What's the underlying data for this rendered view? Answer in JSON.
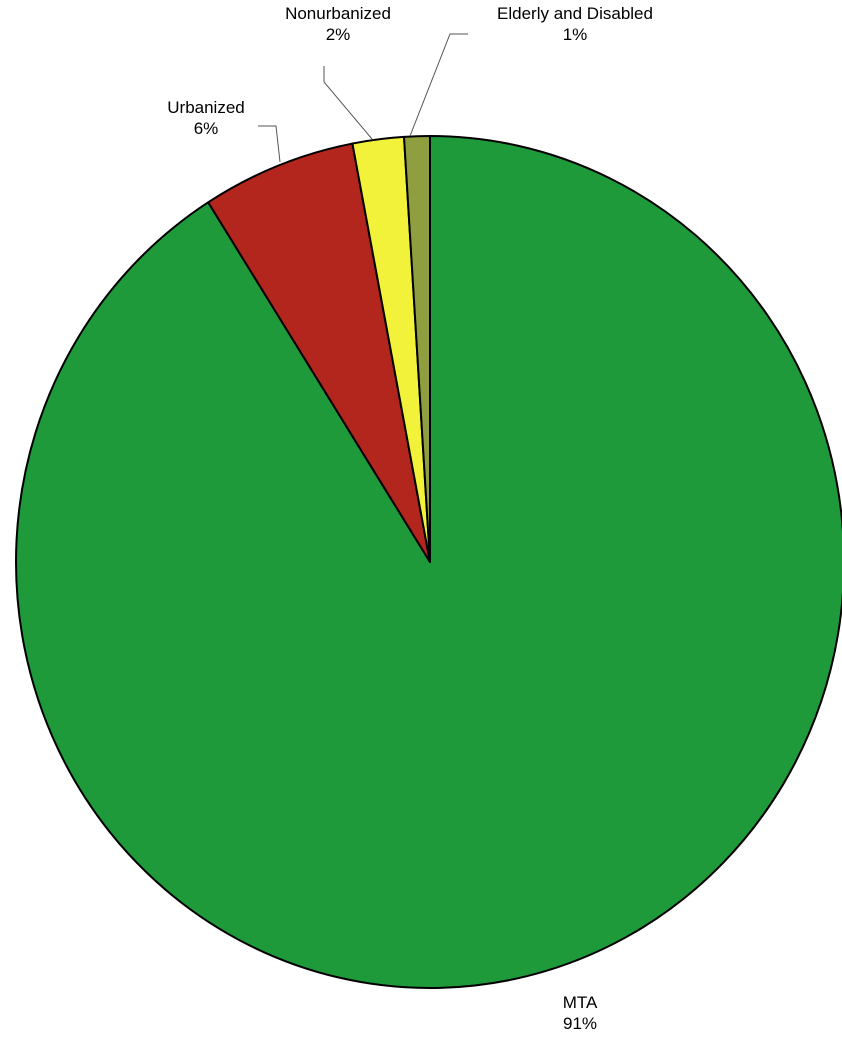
{
  "chart_data": {
    "type": "pie",
    "title": "",
    "start_angle_deg": 90,
    "direction": "clockwise",
    "legend": "none",
    "slices": [
      {
        "label": "MTA",
        "value": 91,
        "percent_label": "91%",
        "color": "#1f9a3a"
      },
      {
        "label": "Urbanized",
        "value": 6,
        "percent_label": "6%",
        "color": "#b3261e"
      },
      {
        "label": "Nonurbanized",
        "value": 2,
        "percent_label": "2%",
        "color": "#f2f23a"
      },
      {
        "label": "Elderly and Disabled",
        "value": 1,
        "percent_label": "1%",
        "color": "#8f9e3e"
      }
    ]
  }
}
